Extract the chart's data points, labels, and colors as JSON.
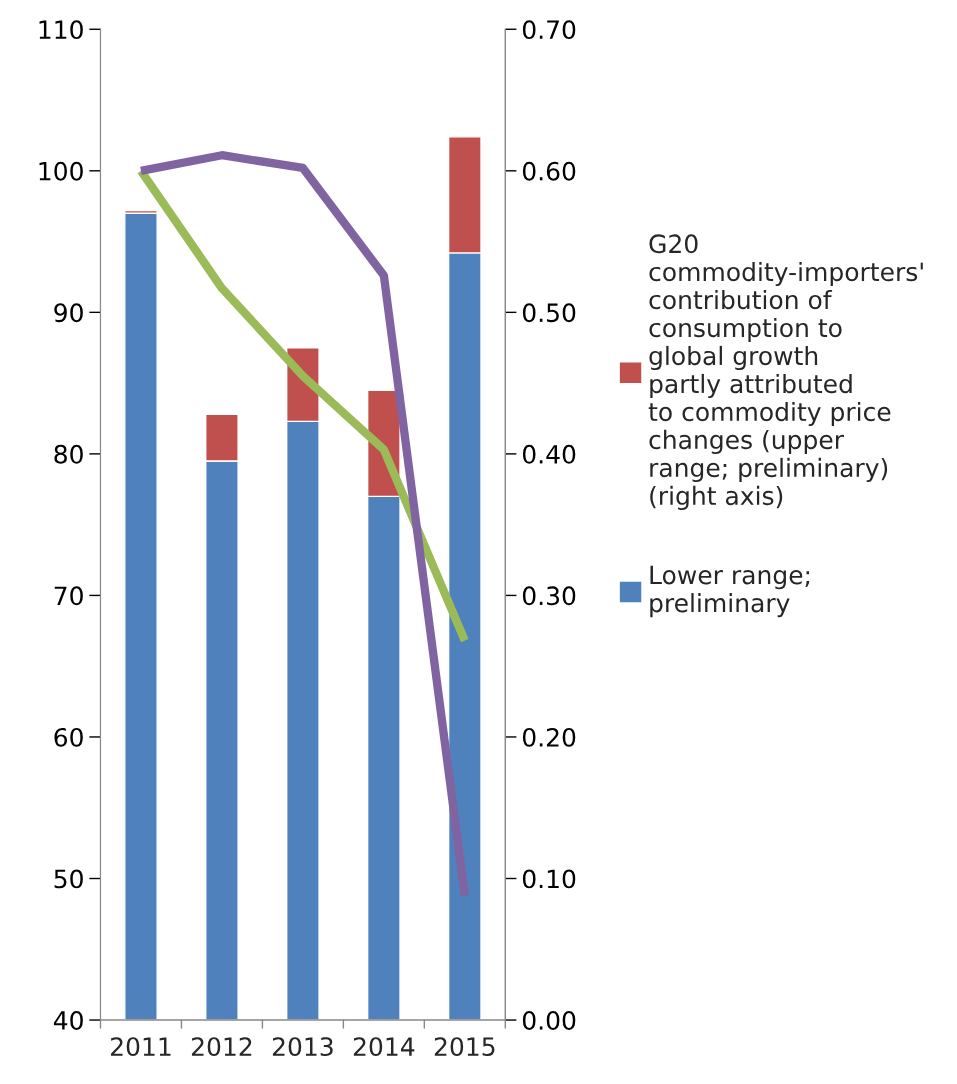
{
  "chart_data": {
    "type": "bar",
    "stacked": true,
    "categories": [
      "2011",
      "2012",
      "2013",
      "2014",
      "2015"
    ],
    "series": [
      {
        "name": "Lower range; preliminary",
        "color": "#4f81bd",
        "axis": "y2",
        "values": [
          0.57,
          0.395,
          0.423,
          0.37,
          0.542
        ]
      },
      {
        "name": "G20 commodity-importers' contribution of consumption to global growth partly attributed to commodity price changes (upper range; preliminary) (right axis)",
        "color": "#c0504d",
        "axis": "y2",
        "values": [
          0.002,
          0.033,
          0.052,
          0.075,
          0.082
        ]
      },
      {
        "type": "line",
        "color": "#9bbb59",
        "axis": "y",
        "values": [
          100.0,
          91.7,
          85.5,
          80.3,
          66.8
        ]
      },
      {
        "type": "line",
        "color": "#8064a2",
        "axis": "y",
        "values": [
          100.0,
          101.1,
          100.2,
          92.6,
          48.8
        ]
      }
    ],
    "ylim": [
      40,
      110
    ],
    "yticks": [
      40,
      50,
      60,
      70,
      80,
      90,
      100,
      110
    ],
    "y2lim": [
      0,
      0.7
    ],
    "y2ticks": [
      {
        "value": 0,
        "label": "0.00"
      },
      {
        "value": 0.1,
        "label": "0.10"
      },
      {
        "value": 0.2,
        "label": "0.20"
      },
      {
        "value": 0.3,
        "label": "0.30"
      },
      {
        "value": 0.4,
        "label": "0.40"
      },
      {
        "value": 0.5,
        "label": "0.50"
      },
      {
        "value": 0.6,
        "label": "0.60"
      },
      {
        "value": 0.7,
        "label": "0.70"
      }
    ],
    "grid": false,
    "legend": "right"
  }
}
